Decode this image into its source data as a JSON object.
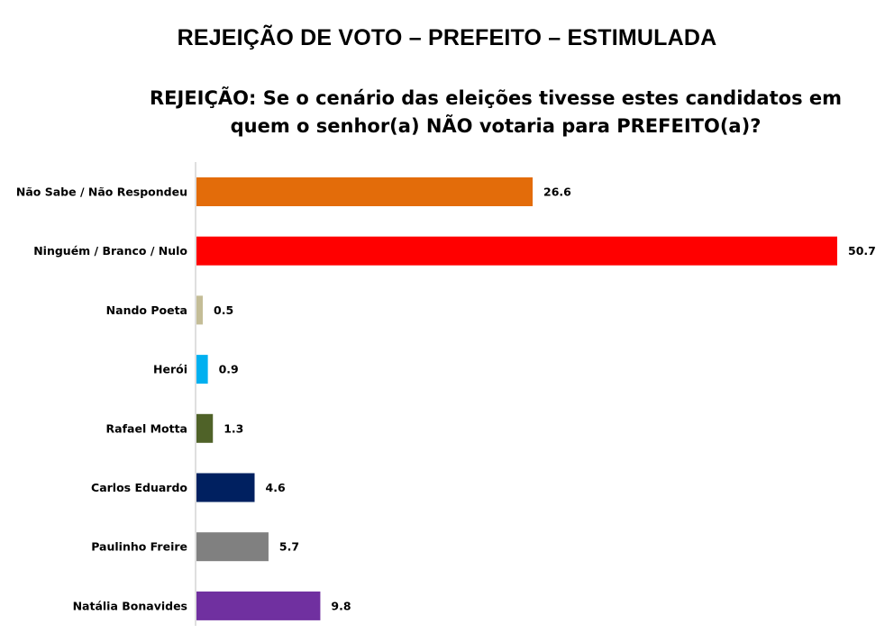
{
  "chart_data": {
    "type": "bar",
    "orientation": "horizontal",
    "title": "REJEIÇÃO DE VOTO – PREFEITO – ESTIMULADA",
    "subtitle": "REJEIÇÃO: Se o cenário das eleições tivesse estes candidatos em quem o senhor(a) NÃO votaria para PREFEITO(a)?",
    "categories": [
      "Não Sabe / Não Respondeu",
      "Ninguém / Branco / Nulo",
      "Nando Poeta",
      "Herói",
      "Rafael Motta",
      "Carlos Eduardo",
      "Paulinho Freire",
      "Natália Bonavides"
    ],
    "values": [
      26.6,
      50.7,
      0.5,
      0.9,
      1.3,
      4.6,
      5.7,
      9.8
    ],
    "value_labels": [
      "26.6",
      "50.7",
      "0.5",
      "0.9",
      "1.3",
      "4.6",
      "5.7",
      "9.8"
    ],
    "colors": [
      "#E36C0A",
      "#FF0000",
      "#C4BD97",
      "#00B0F0",
      "#4F6228",
      "#002060",
      "#808080",
      "#7030A0"
    ],
    "xlim": [
      0,
      50.7
    ],
    "grid": false,
    "legend": "none"
  }
}
